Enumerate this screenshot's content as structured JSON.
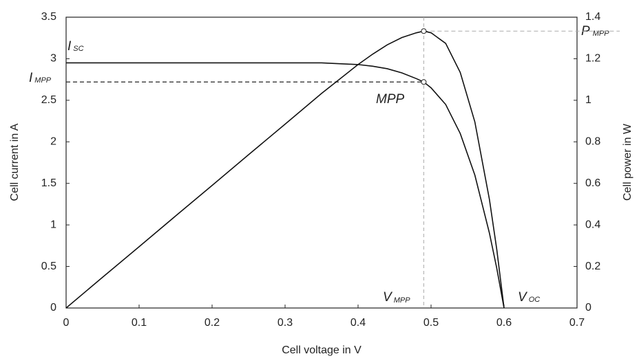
{
  "chart_data": {
    "type": "line",
    "x_label": "Cell voltage in V",
    "y_label": "Cell current in A",
    "y2_label": "Cell power in W",
    "x": [
      0,
      0.05,
      0.1,
      0.15,
      0.2,
      0.25,
      0.3,
      0.35,
      0.4,
      0.42,
      0.44,
      0.46,
      0.48,
      0.49,
      0.5,
      0.52,
      0.54,
      0.56,
      0.58,
      0.59,
      0.6
    ],
    "series": [
      {
        "color": "#111111",
        "values": [
          2.95,
          2.95,
          2.95,
          2.95,
          2.95,
          2.95,
          2.95,
          2.95,
          2.93,
          2.91,
          2.88,
          2.83,
          2.76,
          2.72,
          2.65,
          2.45,
          2.1,
          1.6,
          0.9,
          0.48,
          0
        ]
      },
      {
        "color": "#111111",
        "axis": "y2",
        "values": [
          0,
          0.148,
          0.295,
          0.443,
          0.59,
          0.738,
          0.885,
          1.033,
          1.172,
          1.222,
          1.267,
          1.302,
          1.325,
          1.333,
          1.325,
          1.274,
          1.134,
          0.896,
          0.522,
          0.283,
          0
        ]
      }
    ],
    "mpp": {
      "x": 0.49,
      "current": 2.72,
      "power": 1.333
    },
    "annotations": [
      {
        "main": "I",
        "sub": "SC"
      },
      {
        "main": "I",
        "sub": "MPP"
      },
      {
        "main": "MPP"
      },
      {
        "main": "P",
        "sub": "MPP"
      },
      {
        "main": "V",
        "sub": "MPP"
      },
      {
        "main": "V",
        "sub": "OC"
      }
    ],
    "xlim": [
      0,
      0.7
    ],
    "xticks": [
      0,
      0.1,
      0.2,
      0.3,
      0.4,
      0.5,
      0.6,
      0.7
    ],
    "ylim": [
      0,
      3.5
    ],
    "yticks": [
      0,
      0.5,
      1,
      1.5,
      2,
      2.5,
      3,
      3.5
    ],
    "y2lim": [
      0,
      1.4
    ],
    "y2ticks": [
      0,
      0.2,
      0.4,
      0.6,
      0.8,
      1,
      1.2,
      1.4
    ],
    "grid": false
  }
}
